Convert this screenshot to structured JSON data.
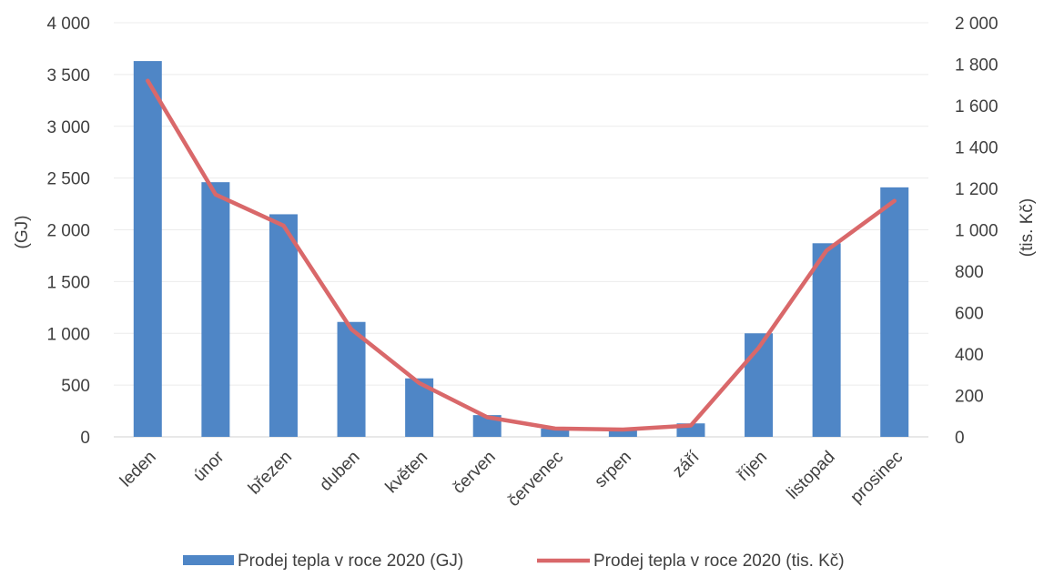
{
  "chart_data": {
    "type": "bar",
    "categories": [
      "leden",
      "únor",
      "březen",
      "duben",
      "květen",
      "červen",
      "červenec",
      "srpen",
      "září",
      "říjen",
      "listopad",
      "prosinec"
    ],
    "series": [
      {
        "name": "Prodej tepla v roce 2020 (GJ)",
        "type": "bar",
        "axis": "left",
        "color": "#4f86c6",
        "values": [
          3630,
          2460,
          2150,
          1110,
          565,
          210,
          80,
          65,
          130,
          1000,
          1870,
          2410
        ]
      },
      {
        "name": "Prodej tepla v roce 2020 (tis. Kč)",
        "type": "line",
        "axis": "right",
        "color": "#d9686a",
        "values": [
          1720,
          1170,
          1020,
          520,
          260,
          95,
          40,
          35,
          55,
          430,
          900,
          1140
        ]
      }
    ],
    "ylabel": "(GJ)",
    "ylabel_right": "(tis. Kč)",
    "ylim": [
      0,
      4000
    ],
    "ylim_right": [
      0,
      2000
    ],
    "yticks": [
      "0",
      "500",
      "1 000",
      "1 500",
      "2 000",
      "2 500",
      "3 000",
      "3 500",
      "4 000"
    ],
    "yticks_right": [
      "0",
      "200",
      "400",
      "600",
      "800",
      "1 000",
      "1 200",
      "1 400",
      "1 600",
      "1 800",
      "2 000"
    ],
    "grid": true,
    "legend_position": "bottom"
  }
}
